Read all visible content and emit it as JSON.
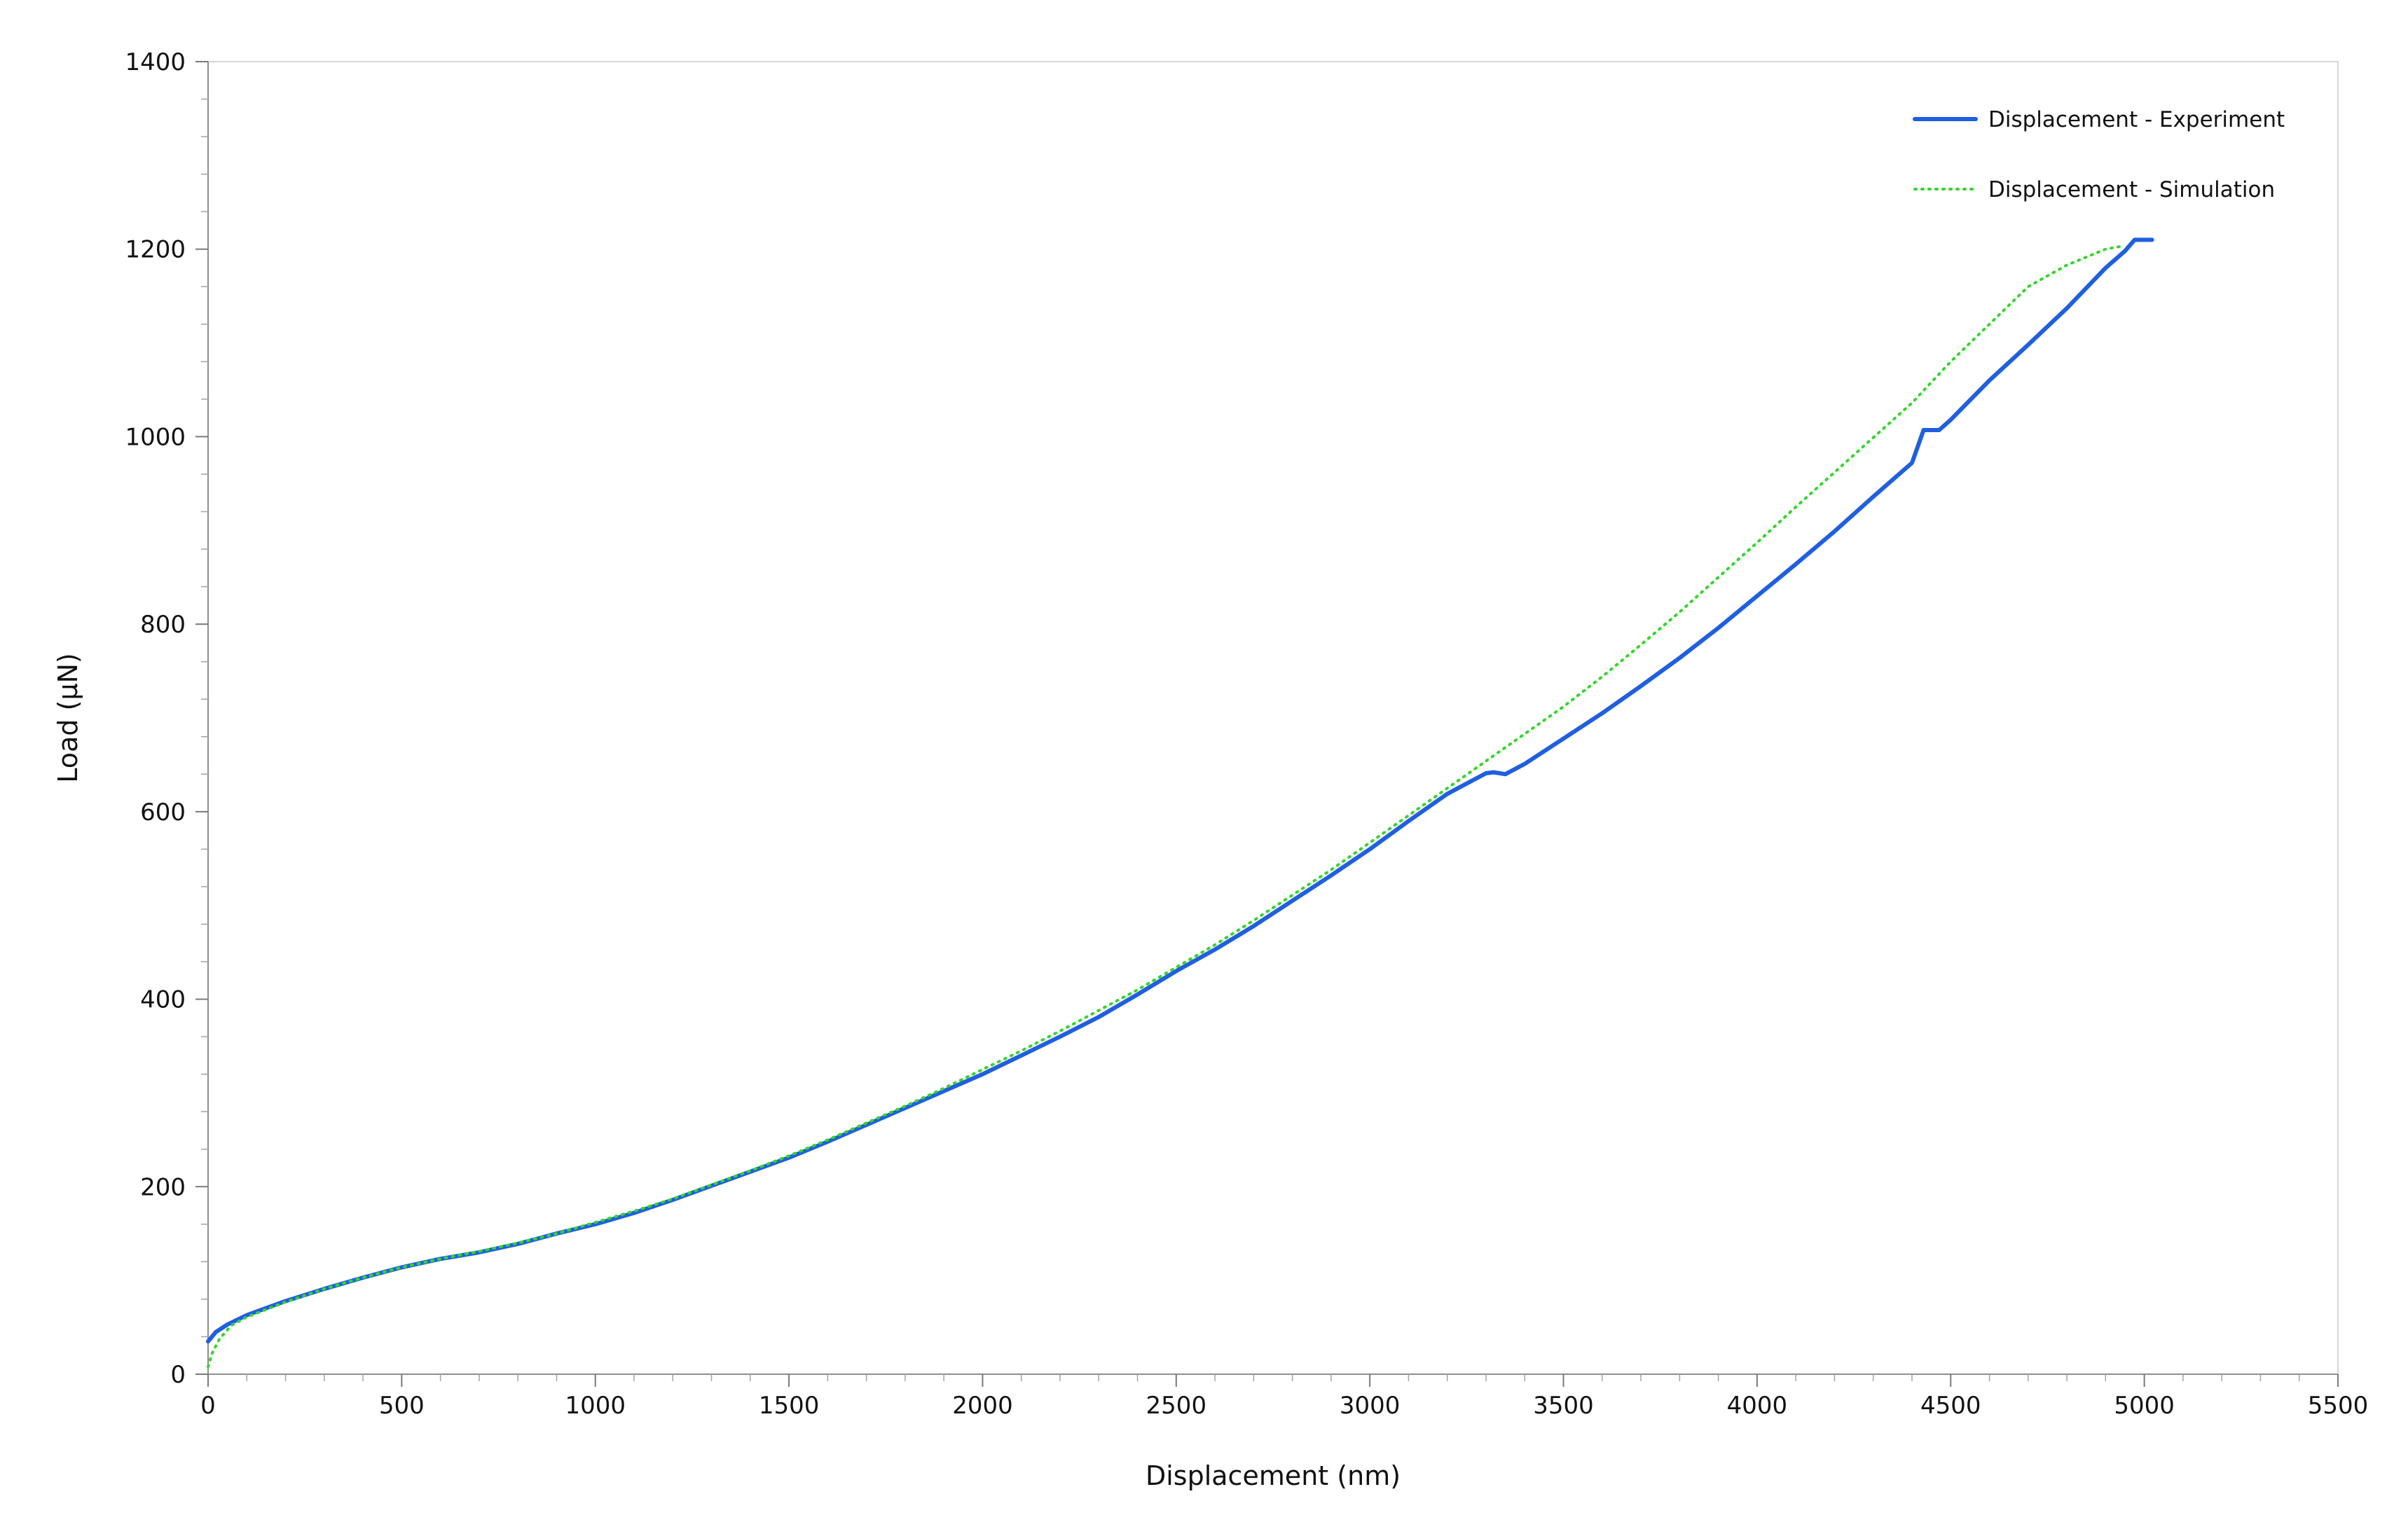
{
  "chart_data": {
    "type": "line",
    "title": "",
    "xlabel": "Displacement (nm)",
    "ylabel": "Load (µN)",
    "xlim": [
      0,
      5500
    ],
    "ylim": [
      0,
      1400
    ],
    "x_ticks": [
      0,
      500,
      1000,
      1500,
      2000,
      2500,
      3000,
      3500,
      4000,
      4500,
      5000,
      5500
    ],
    "y_ticks": [
      0,
      200,
      400,
      600,
      800,
      1000,
      1200,
      1400
    ],
    "x_tick_labels": [
      "0",
      "500",
      "1000",
      "1500",
      "2000",
      "2500",
      "3000",
      "3500",
      "4000",
      "4500",
      "5000",
      "5500"
    ],
    "y_tick_labels": [
      "0",
      "200",
      "400",
      "600",
      "800",
      "1000",
      "1200",
      "1400"
    ],
    "grid": false,
    "legend": {
      "position": "top-right"
    },
    "series": [
      {
        "name": "Displacement - Experiment",
        "style": "solid",
        "color": "#1f5fe0",
        "x": [
          0,
          20,
          50,
          100,
          200,
          300,
          400,
          500,
          600,
          700,
          800,
          900,
          1000,
          1100,
          1200,
          1300,
          1400,
          1500,
          1600,
          1700,
          1800,
          1900,
          2000,
          2100,
          2200,
          2300,
          2400,
          2500,
          2600,
          2700,
          2800,
          2900,
          3000,
          3100,
          3200,
          3300,
          3320,
          3350,
          3400,
          3500,
          3600,
          3700,
          3800,
          3900,
          4000,
          4100,
          4200,
          4300,
          4400,
          4430,
          4470,
          4500,
          4600,
          4700,
          4800,
          4900,
          4950,
          4975,
          5000,
          5020
        ],
        "y": [
          35,
          45,
          53,
          63,
          78,
          91,
          103,
          114,
          123,
          130,
          139,
          150,
          160,
          172,
          186,
          201,
          216,
          231,
          248,
          266,
          284,
          302,
          320,
          340,
          360,
          381,
          405,
          430,
          453,
          478,
          505,
          532,
          560,
          590,
          619,
          641,
          642,
          640,
          651,
          678,
          705,
          734,
          764,
          796,
          830,
          864,
          899,
          936,
          972,
          1007,
          1007,
          1018,
          1060,
          1098,
          1137,
          1180,
          1198,
          1210,
          1210,
          1210
        ]
      },
      {
        "name": "Displacement - Simulation",
        "style": "dotted",
        "color": "#33d62b",
        "x": [
          0,
          10,
          30,
          60,
          100,
          200,
          300,
          400,
          500,
          600,
          700,
          800,
          900,
          1000,
          1100,
          1200,
          1300,
          1400,
          1500,
          1600,
          1700,
          1800,
          1900,
          2000,
          2100,
          2200,
          2300,
          2400,
          2500,
          2600,
          2700,
          2800,
          2900,
          3000,
          3100,
          3200,
          3300,
          3400,
          3500,
          3600,
          3700,
          3800,
          3900,
          4000,
          4100,
          4200,
          4300,
          4400,
          4500,
          4600,
          4700,
          4800,
          4900,
          4940
        ],
        "y": [
          8,
          22,
          38,
          52,
          61,
          77,
          91,
          103,
          114,
          123,
          131,
          140,
          150,
          162,
          174,
          187,
          202,
          217,
          233,
          250,
          268,
          286,
          305,
          325,
          345,
          366,
          388,
          410,
          434,
          458,
          484,
          511,
          538,
          567,
          596,
          625,
          654,
          683,
          712,
          744,
          778,
          813,
          850,
          887,
          925,
          962,
          999,
          1036,
          1080,
          1120,
          1160,
          1183,
          1200,
          1203
        ]
      }
    ]
  }
}
